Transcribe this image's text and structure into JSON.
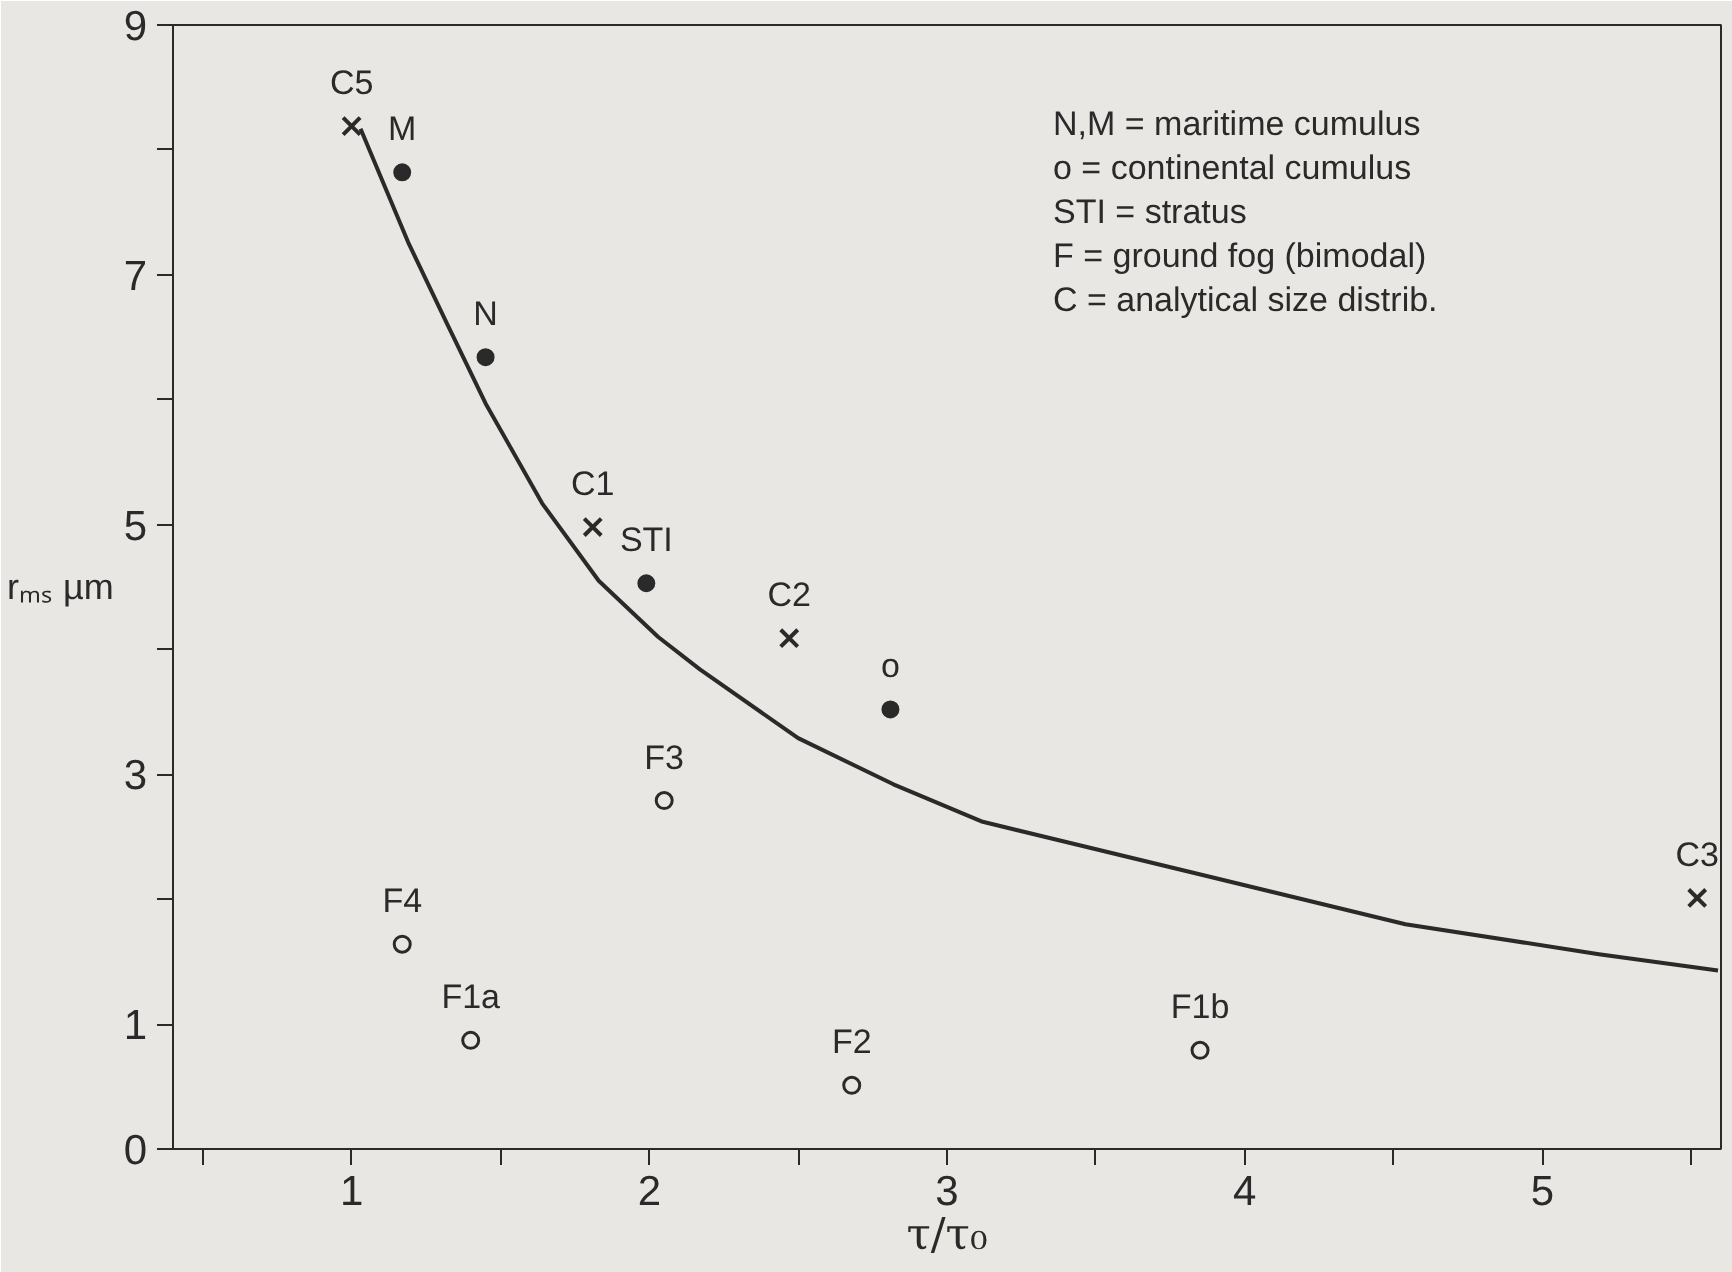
{
  "chart_data": {
    "type": "scatter",
    "xlabel": "τ/τ₀",
    "ylabel": "rₘₛ µm",
    "xlim": [
      0.4,
      5.6
    ],
    "ylim": [
      0,
      9
    ],
    "xticks": [
      {
        "value": 0.5,
        "label": null
      },
      1,
      {
        "value": 1.5,
        "label": null
      },
      2,
      {
        "value": 2.5,
        "label": null
      },
      3,
      {
        "value": 3.5,
        "label": null
      },
      4,
      {
        "value": 4.5,
        "label": null
      },
      5,
      {
        "value": 5.5,
        "label": null
      }
    ],
    "yticks": [
      0,
      1,
      {
        "value": 2,
        "label": null
      },
      3,
      {
        "value": 4,
        "label": null
      },
      5,
      {
        "value": 6,
        "label": null
      },
      7,
      {
        "value": 8,
        "label": null
      },
      9
    ],
    "grid": false,
    "series": [
      {
        "type": "line",
        "color": "#2a2a2a",
        "line_style": "solid",
        "x": [
          1.03,
          1.19,
          1.32,
          1.45,
          1.64,
          1.83,
          2.03,
          2.17,
          2.5,
          2.82,
          3.12,
          3.9,
          4.54,
          5.19,
          5.59
        ],
        "values": [
          8.17,
          7.26,
          6.61,
          5.97,
          5.17,
          4.55,
          4.1,
          3.84,
          3.29,
          2.92,
          2.62,
          2.17,
          1.8,
          1.56,
          1.43
        ]
      },
      {
        "color": "#2a2a2a",
        "marker": "cross",
        "x": [
          1.0,
          1.81,
          2.47,
          5.52
        ],
        "values": [
          8.19,
          4.98,
          4.09,
          2.01
        ]
      },
      {
        "color": "#2a2a2a",
        "marker": "circle",
        "x": [
          1.17,
          1.45,
          1.99,
          2.81
        ],
        "values": [
          7.82,
          6.34,
          4.53,
          3.52
        ]
      },
      {
        "color": "#2a2a2a",
        "marker": "circle_open",
        "x": [
          2.05,
          1.17,
          1.4,
          2.68,
          3.85
        ],
        "values": [
          2.79,
          1.64,
          0.87,
          0.51,
          0.79
        ]
      }
    ],
    "annotations": [
      {
        "text": "C5",
        "x": 1.0,
        "y": 8.19
      },
      {
        "text": "C1",
        "x": 1.81,
        "y": 4.98
      },
      {
        "text": "C2",
        "x": 2.47,
        "y": 4.09
      },
      {
        "text": "C3",
        "x": 5.52,
        "y": 2.01
      },
      {
        "text": "M",
        "x": 1.17,
        "y": 7.82
      },
      {
        "text": "N",
        "x": 1.45,
        "y": 6.34
      },
      {
        "text": "STI",
        "x": 1.99,
        "y": 4.53
      },
      {
        "text": "o",
        "x": 2.81,
        "y": 3.52
      },
      {
        "text": "F3",
        "x": 2.05,
        "y": 2.79
      },
      {
        "text": "F4",
        "x": 1.17,
        "y": 1.64
      },
      {
        "text": "F1a",
        "x": 1.4,
        "y": 0.87
      },
      {
        "text": "F2",
        "x": 2.68,
        "y": 0.51
      },
      {
        "text": "F1b",
        "x": 3.85,
        "y": 0.79
      },
      "N,M = maritime cumulus",
      "o = continental cumulus",
      "STI = stratus",
      "F = ground fog (bimodal)",
      "C = analytical size distrib."
    ]
  }
}
